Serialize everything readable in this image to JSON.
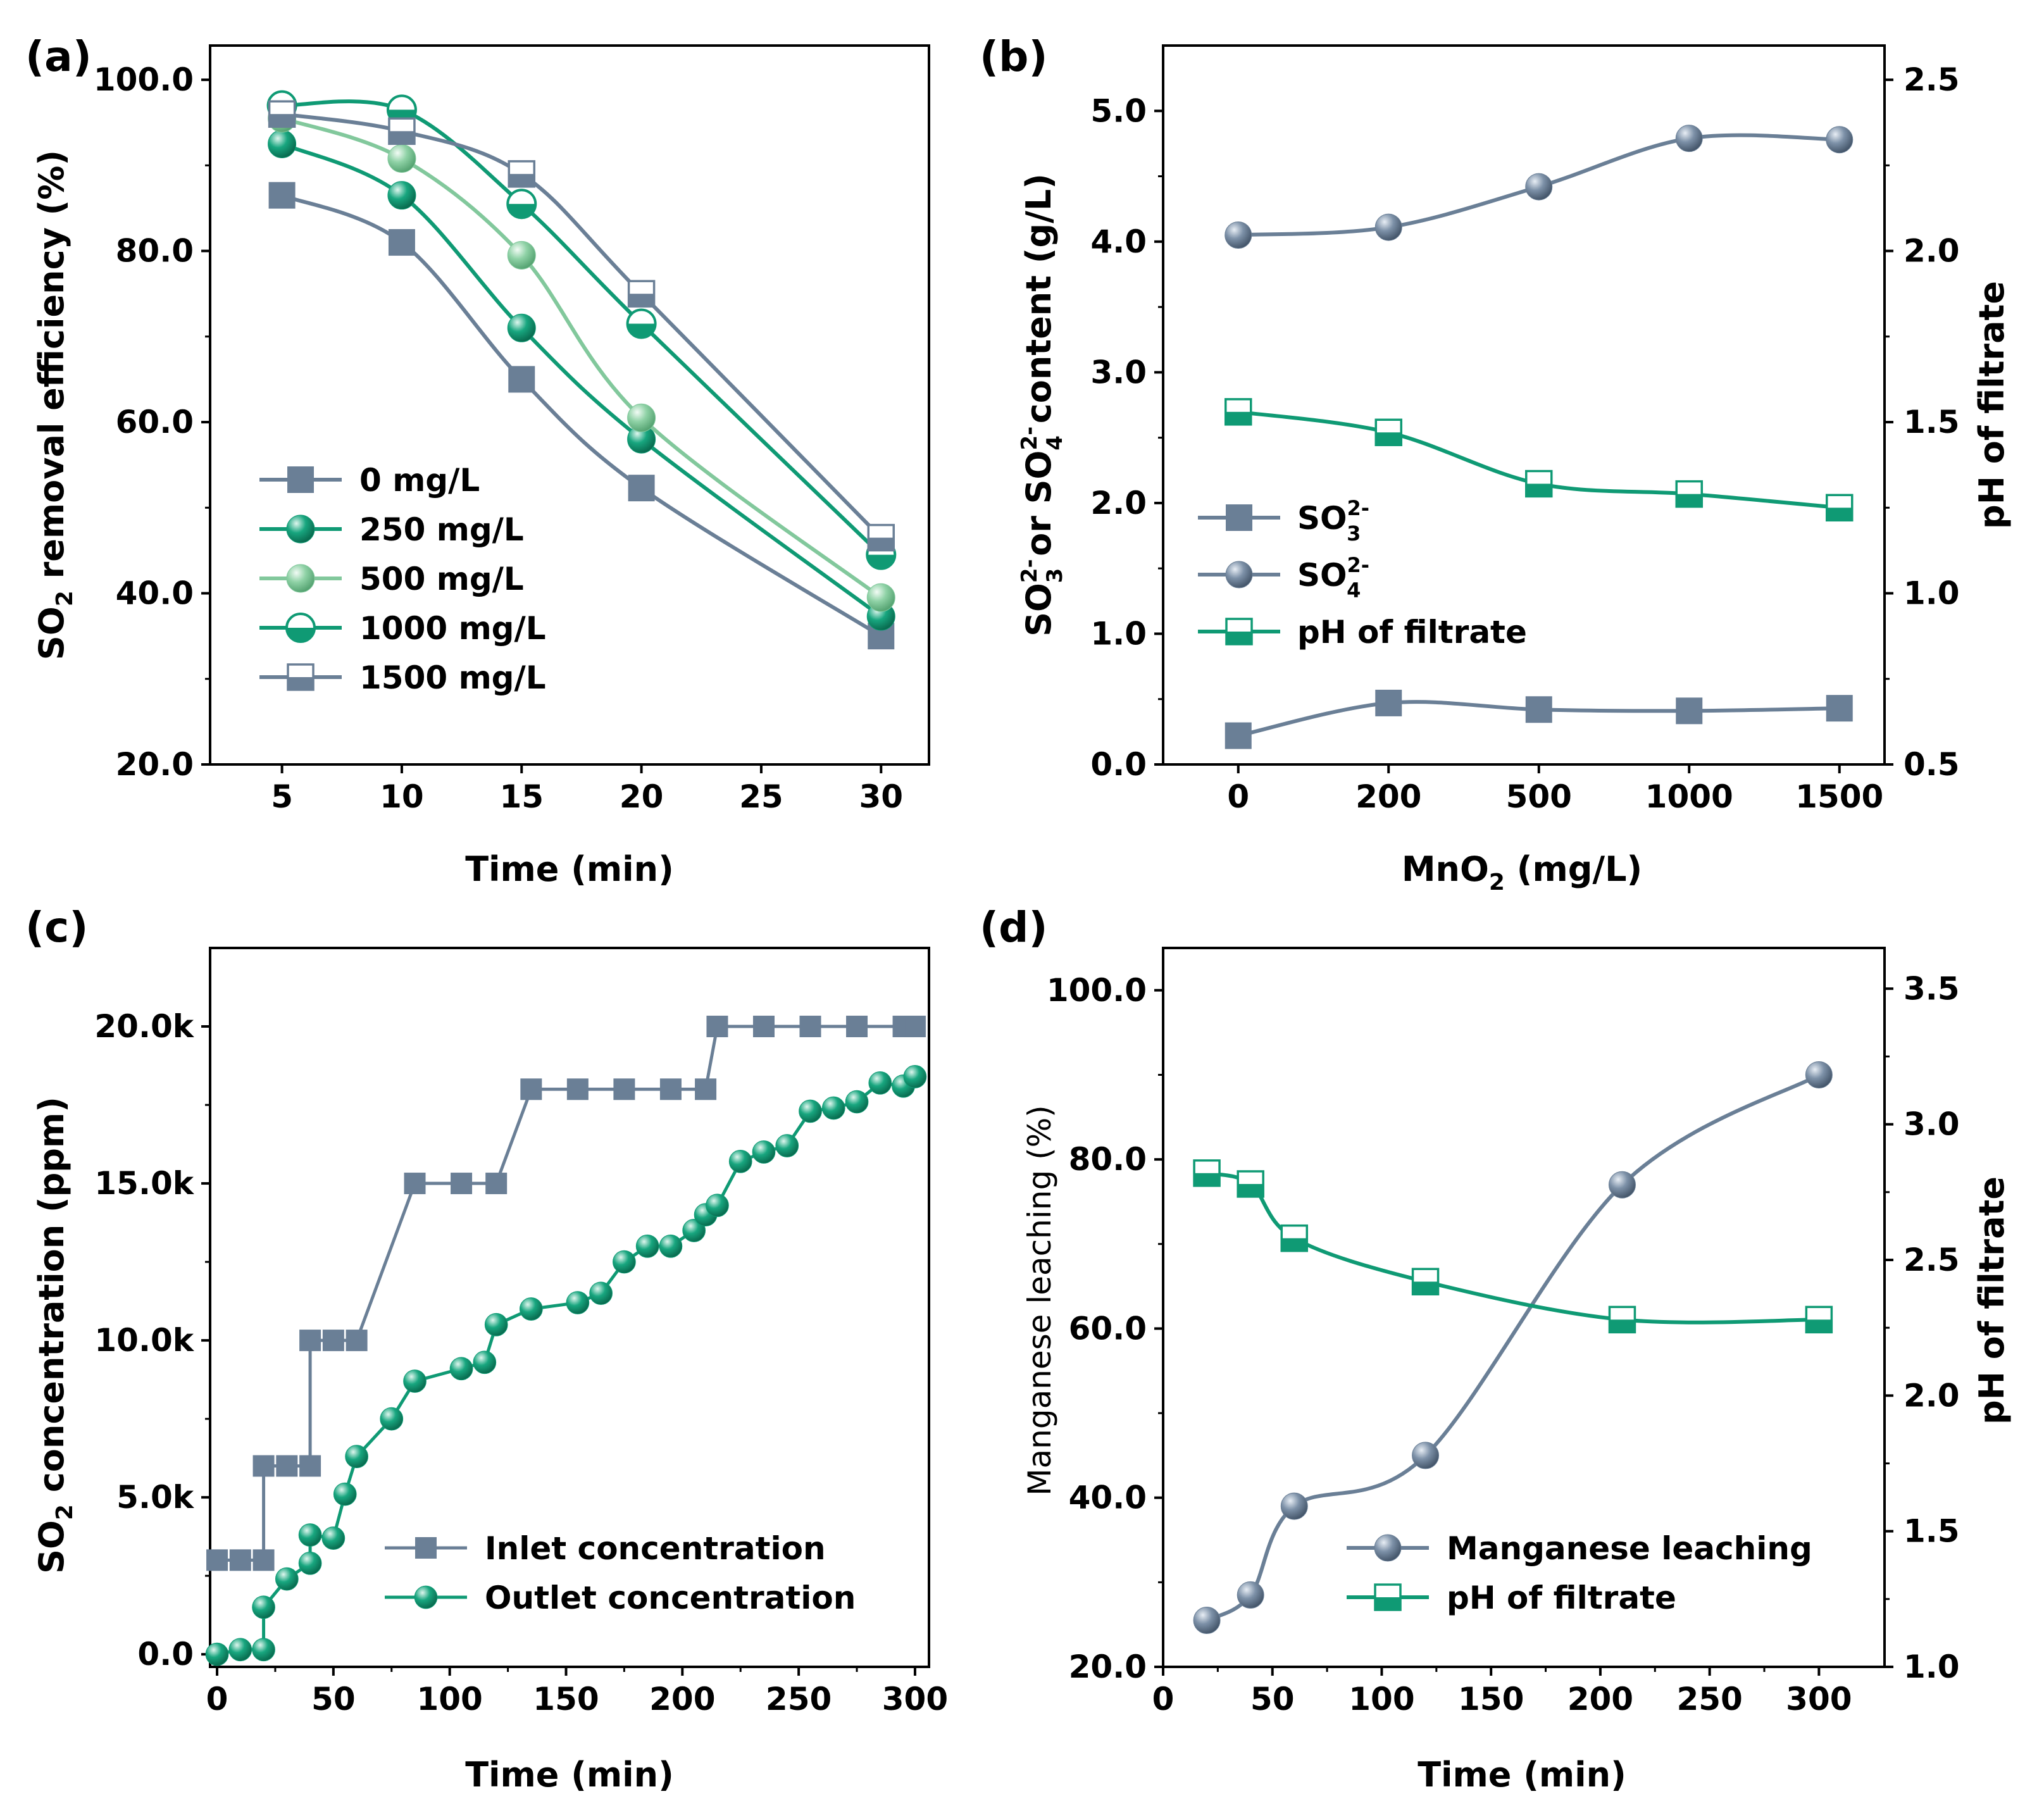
{
  "colors": {
    "slate": "#6a7f96",
    "teal": "#0f9a74",
    "lightgreen": "#82c89c"
  },
  "chart_data": [
    {
      "panel": "(a)",
      "type": "line",
      "xlabel": "Time (min)",
      "ylabel": "SO2 removal efficiency (%)",
      "ylabel_parts": {
        "pre": "SO",
        "sub": "2",
        "post": " removal efficiency (%)"
      },
      "xlim": [
        2,
        32
      ],
      "ylim": [
        20,
        104
      ],
      "xticks": [
        5,
        10,
        15,
        20,
        25,
        30
      ],
      "xtick_labels": [
        "5",
        "10",
        "15",
        "20",
        "25",
        "30"
      ],
      "yticks": [
        20,
        40,
        60,
        80,
        100
      ],
      "ytick_labels": [
        "20.0",
        "40.0",
        "60.0",
        "80.0",
        "100.0"
      ],
      "legend_position": "bottom-left",
      "series": [
        {
          "name": "0 mg/L",
          "color": "slate",
          "marker": "square-filled",
          "x": [
            5,
            10,
            15,
            20,
            30
          ],
          "values": [
            86.5,
            81.0,
            65.0,
            52.3,
            35.0
          ]
        },
        {
          "name": "250 mg/L",
          "color": "teal",
          "marker": "circle-filled",
          "x": [
            5,
            10,
            15,
            20,
            30
          ],
          "values": [
            92.5,
            86.5,
            71.0,
            58.0,
            37.3
          ]
        },
        {
          "name": "500 mg/L",
          "color": "lightgreen",
          "marker": "circle-filled",
          "x": [
            5,
            10,
            15,
            20,
            30
          ],
          "values": [
            95.5,
            90.8,
            79.5,
            60.5,
            39.5
          ]
        },
        {
          "name": "1000 mg/L",
          "color": "teal",
          "marker": "circle-half",
          "x": [
            5,
            10,
            15,
            20,
            30
          ],
          "values": [
            97.0,
            96.5,
            85.5,
            71.5,
            44.5
          ]
        },
        {
          "name": "1500 mg/L",
          "color": "slate",
          "marker": "square-half",
          "x": [
            5,
            10,
            15,
            20,
            30
          ],
          "values": [
            96.0,
            94.0,
            89.0,
            75.0,
            46.5
          ]
        }
      ]
    },
    {
      "panel": "(b)",
      "type": "line",
      "xlabel": "MnO2 (mg/L)",
      "xlabel_parts": {
        "pre": "MnO",
        "sub": "2",
        "post": " (mg/L)"
      },
      "ylabel": "SO3 2- or SO4 2- content (g/L)",
      "ylabel_parts": {
        "a": "SO",
        "a_sup": "2-",
        "a_sub": "3",
        "b": " or SO",
        "b_sup": "2-",
        "b_sub": "4",
        "c": " content (g/L)"
      },
      "ylabel_right": "pH of filtrate",
      "categories": [
        "0",
        "200",
        "500",
        "1000",
        "1500"
      ],
      "xlim": [
        -0.5,
        4.3
      ],
      "ylim": [
        0,
        5.5
      ],
      "ylim_right": [
        0.5,
        2.6
      ],
      "yticks": [
        0,
        1,
        2,
        3,
        4,
        5
      ],
      "ytick_labels": [
        "0.0",
        "1.0",
        "2.0",
        "3.0",
        "4.0",
        "5.0"
      ],
      "yticks_right": [
        0.5,
        1.0,
        1.5,
        2.0,
        2.5
      ],
      "ytick_labels_right": [
        "0.5",
        "1.0",
        "1.5",
        "2.0",
        "2.5"
      ],
      "legend_position": "center-left",
      "series": [
        {
          "name": "SO3 2-",
          "label_base": "SO",
          "label_sup": "2-",
          "label_sub": "3",
          "color": "slate",
          "marker": "square-filled",
          "axis": "left",
          "values": [
            0.22,
            0.47,
            0.42,
            0.41,
            0.43
          ]
        },
        {
          "name": "SO4 2-",
          "label_base": "SO",
          "label_sup": "2-",
          "label_sub": "4",
          "color": "slate",
          "marker": "sphere",
          "axis": "left",
          "values": [
            4.05,
            4.11,
            4.42,
            4.79,
            4.78
          ]
        },
        {
          "name": "pH of filtrate",
          "label_base": "pH of filtrate",
          "label_sup": "",
          "label_sub": "",
          "color": "teal",
          "marker": "square-half",
          "axis": "right",
          "values": [
            1.53,
            1.47,
            1.32,
            1.29,
            1.25
          ]
        }
      ]
    },
    {
      "panel": "(c)",
      "type": "line",
      "xlabel": "Time (min)",
      "ylabel": "SO2 concentration (ppm)",
      "ylabel_parts": {
        "pre": "SO",
        "sub": "2",
        "post": " concentration (ppm)"
      },
      "xlim": [
        -3,
        306
      ],
      "ylim": [
        -400,
        22500
      ],
      "xticks": [
        0,
        50,
        100,
        150,
        200,
        250,
        300
      ],
      "xtick_labels": [
        "0",
        "50",
        "100",
        "150",
        "200",
        "250",
        "300"
      ],
      "yticks": [
        0,
        5000,
        10000,
        15000,
        20000
      ],
      "ytick_labels": [
        "0.0",
        "5.0k",
        "10.0k",
        "15.0k",
        "20.0k"
      ],
      "legend_position": "bottom-right",
      "series": [
        {
          "name": "Inlet concentration",
          "color": "slate",
          "marker": "square-filled",
          "curve": "step",
          "x": [
            0,
            10,
            20,
            20,
            30,
            40,
            40,
            50,
            60,
            85,
            105,
            120,
            135,
            155,
            175,
            195,
            210,
            215,
            235,
            255,
            275,
            295,
            300
          ],
          "values": [
            3000,
            3000,
            3000,
            6000,
            6000,
            6000,
            10000,
            10000,
            10000,
            15000,
            15000,
            15000,
            18000,
            18000,
            18000,
            18000,
            18000,
            20000,
            20000,
            20000,
            20000,
            20000,
            20000
          ]
        },
        {
          "name": "Outlet concentration",
          "color": "teal",
          "marker": "sphere",
          "curve": "linear",
          "x": [
            0,
            10,
            20,
            20,
            30,
            40,
            40,
            50,
            55,
            60,
            75,
            85,
            105,
            115,
            120,
            135,
            155,
            165,
            175,
            185,
            195,
            205,
            210,
            215,
            225,
            235,
            245,
            255,
            265,
            275,
            285,
            295,
            300
          ],
          "values": [
            0,
            150,
            150,
            1500,
            2400,
            2900,
            3800,
            3700,
            5100,
            6300,
            7500,
            8700,
            9100,
            9300,
            10500,
            11000,
            11200,
            11500,
            12500,
            13000,
            13000,
            13500,
            14000,
            14300,
            15700,
            16000,
            16200,
            17300,
            17400,
            17600,
            18200,
            18100,
            18400
          ]
        }
      ]
    },
    {
      "panel": "(d)",
      "type": "line",
      "xlabel": "Time (min)",
      "ylabel": "Manganese leaching (%)",
      "ylabel_right": "pH of filtrate",
      "xlim": [
        0,
        330
      ],
      "ylim": [
        20,
        105
      ],
      "ylim_right": [
        1.0,
        3.65
      ],
      "xticks": [
        0,
        50,
        100,
        150,
        200,
        250,
        300
      ],
      "xtick_labels": [
        "0",
        "50",
        "100",
        "150",
        "200",
        "250",
        "300"
      ],
      "yticks": [
        20,
        40,
        60,
        80,
        100
      ],
      "ytick_labels": [
        "20.0",
        "40.0",
        "60.0",
        "80.0",
        "100.0"
      ],
      "yticks_right": [
        1.0,
        1.5,
        2.0,
        2.5,
        3.0,
        3.5
      ],
      "ytick_labels_right": [
        "1.0",
        "1.5",
        "2.0",
        "2.5",
        "3.0",
        "3.5"
      ],
      "legend_position": "bottom-right",
      "series": [
        {
          "name": "Manganese leaching",
          "color": "slate",
          "marker": "sphere",
          "axis": "left",
          "x": [
            20,
            40,
            60,
            120,
            210,
            300
          ],
          "values": [
            25.5,
            28.5,
            39.0,
            45.0,
            77.0,
            90.0
          ]
        },
        {
          "name": "pH of filtrate",
          "color": "teal",
          "marker": "square-half",
          "axis": "right",
          "x": [
            20,
            40,
            60,
            120,
            210,
            300
          ],
          "values": [
            2.82,
            2.78,
            2.58,
            2.42,
            2.28,
            2.28
          ]
        }
      ]
    }
  ]
}
